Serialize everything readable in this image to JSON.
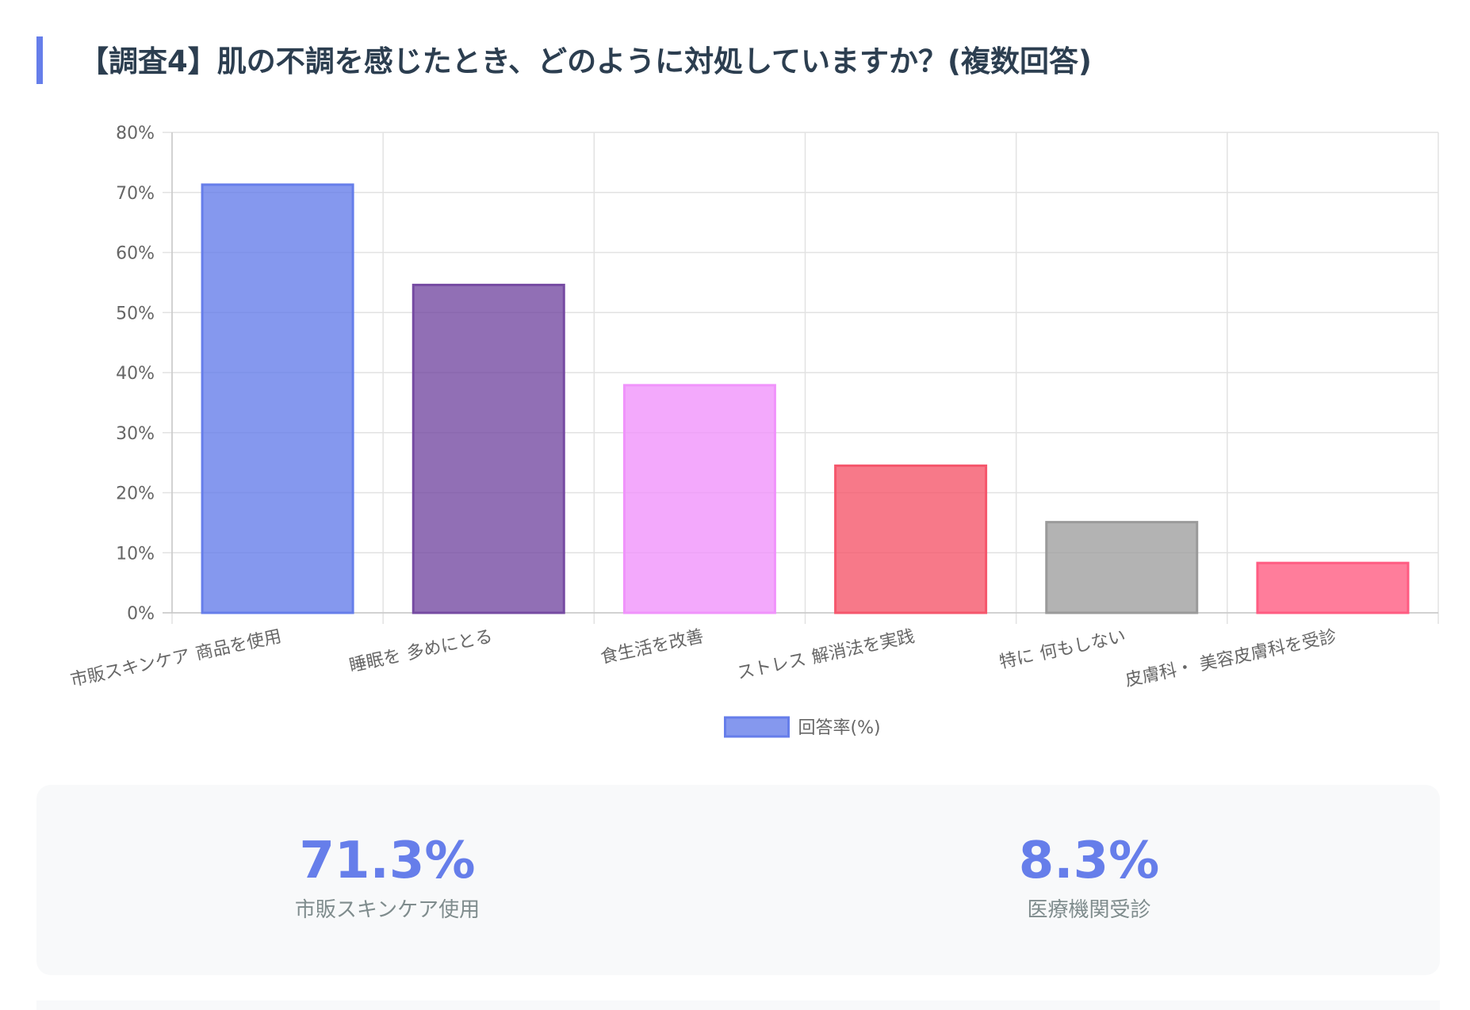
{
  "title": "【調査4】肌の不調を感じたとき、どのように対処していますか？(複数回答)",
  "chart_data": {
    "type": "bar",
    "categories": [
      [
        "市販スキンケア",
        "商品を使用"
      ],
      [
        "睡眠を",
        "多めにとる"
      ],
      [
        "食生活を改善"
      ],
      [
        "ストレス",
        "解消法を実践"
      ],
      [
        "特に",
        "何もしない"
      ],
      [
        "皮膚科・",
        "美容皮膚科を受診"
      ]
    ],
    "values": [
      71.3,
      54.6,
      37.9,
      24.5,
      15.1,
      8.3
    ],
    "colors": [
      {
        "fill": "#667eea",
        "stroke": "#667eea"
      },
      {
        "fill": "#764ba2",
        "stroke": "#764ba2"
      },
      {
        "fill": "#f093fb",
        "stroke": "#f093fb"
      },
      {
        "fill": "#f5576c",
        "stroke": "#f5576c"
      },
      {
        "fill": "#a0a0a0",
        "stroke": "#9a9a9a"
      },
      {
        "fill": "#ff5c82",
        "stroke": "#ff5c82"
      }
    ],
    "ylim": [
      0,
      80
    ],
    "yticks": [
      "0%",
      "10%",
      "20%",
      "30%",
      "40%",
      "50%",
      "60%",
      "70%",
      "80%"
    ],
    "legend": {
      "label": "回答率(%)",
      "position": "bottom"
    },
    "grid": true,
    "xlabel": "",
    "ylabel": ""
  },
  "stats": [
    {
      "value": "71.3%",
      "label": "市販スキンケア使用"
    },
    {
      "value": "8.3%",
      "label": "医療機関受診"
    }
  ]
}
